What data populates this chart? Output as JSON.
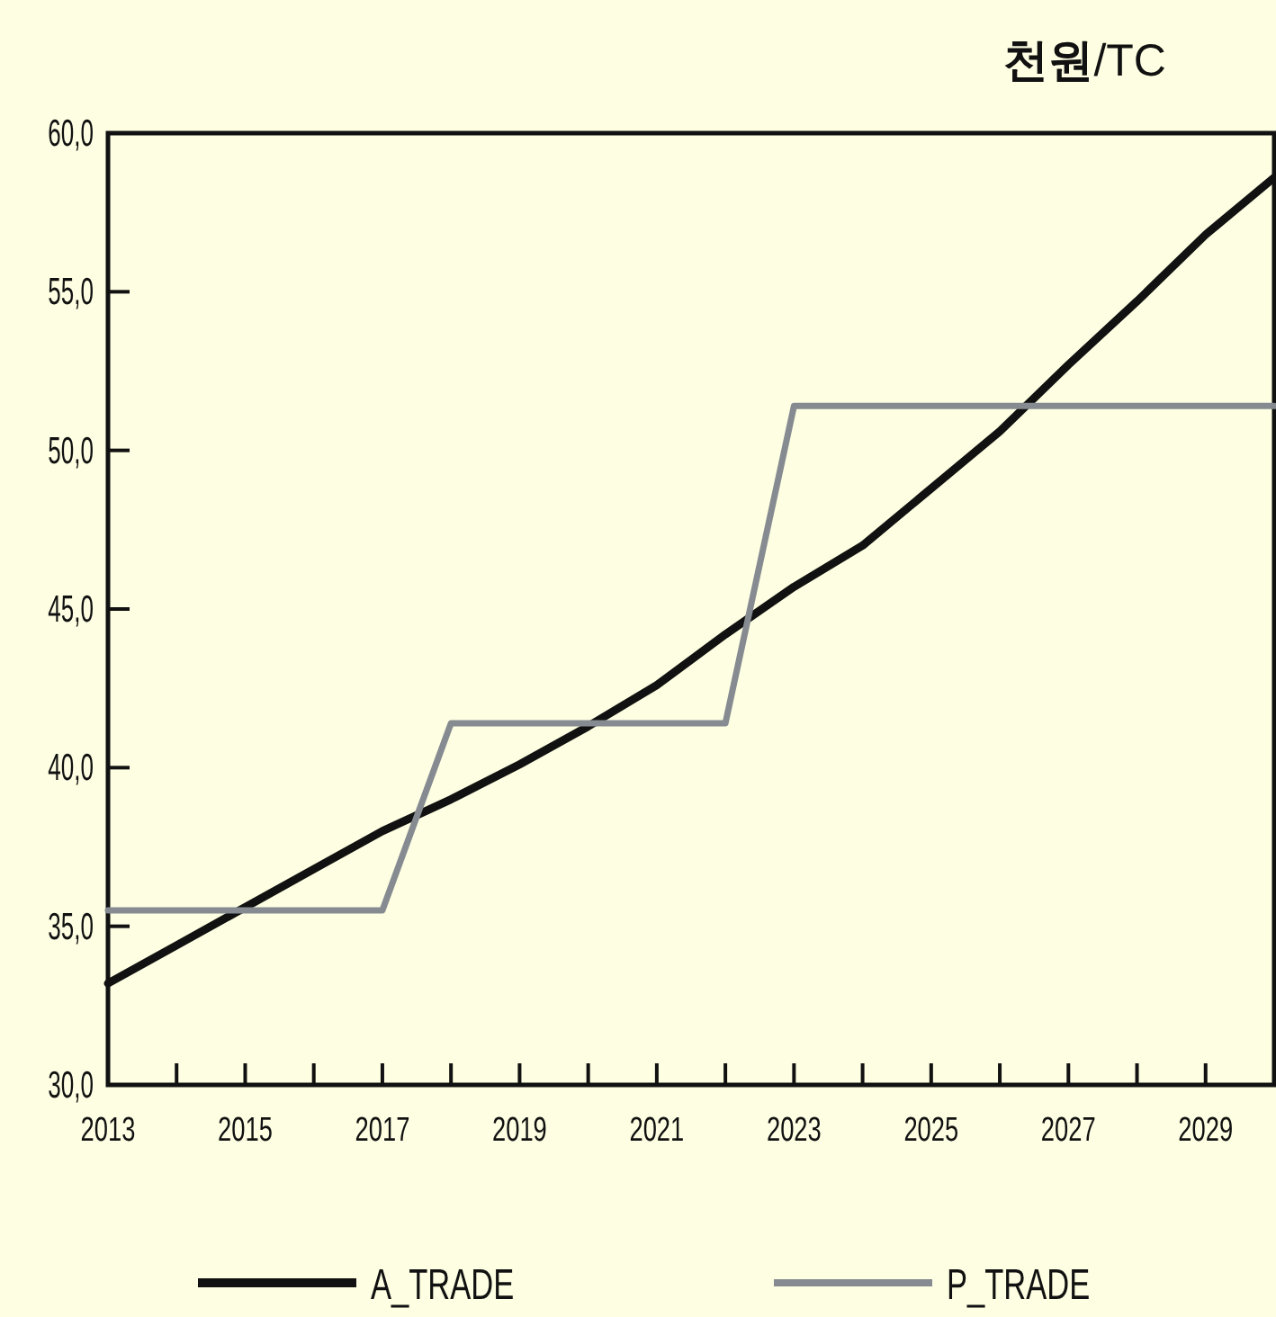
{
  "chart_data": {
    "type": "line",
    "ylabel": "**천원**/TC",
    "xlim": [
      2013,
      2030
    ],
    "ylim": [
      30,
      60
    ],
    "xticks": [
      2013,
      {
        "value": 2014,
        "label": null
      },
      2015,
      {
        "value": 2016,
        "label": null
      },
      2017,
      {
        "value": 2018,
        "label": null
      },
      2019,
      {
        "value": 2020,
        "label": null
      },
      2021,
      {
        "value": 2022,
        "label": null
      },
      2023,
      {
        "value": 2024,
        "label": null
      },
      2025,
      {
        "value": 2026,
        "label": null
      },
      2027,
      {
        "value": 2028,
        "label": null
      },
      2029
    ],
    "yticks": [
      {
        "value": 30,
        "label": "30,0"
      },
      {
        "value": 35,
        "label": "35,0"
      },
      {
        "value": 40,
        "label": "40,0"
      },
      {
        "value": 45,
        "label": "45,0"
      },
      {
        "value": 50,
        "label": "50,0"
      },
      {
        "value": 55,
        "label": "55,0"
      },
      {
        "value": 60,
        "label": "60,0"
      }
    ],
    "x": [
      2013,
      2014,
      2015,
      2016,
      2017,
      2018,
      2019,
      2020,
      2021,
      2022,
      2023,
      2024,
      2025,
      2026,
      2027,
      2028,
      2029,
      2030
    ],
    "legend": "bottom",
    "series": [
      {
        "name": "A_TRADE",
        "color": "#111111",
        "values": [
          33.2,
          34.4,
          35.6,
          36.8,
          38.0,
          39.0,
          40.1,
          41.3,
          42.6,
          44.2,
          45.7,
          47.0,
          48.8,
          50.6,
          52.7,
          54.7,
          56.8,
          58.6
        ]
      },
      {
        "name": "P_TRADE",
        "color": "#858b90",
        "values": [
          35.5,
          35.5,
          35.5,
          35.5,
          35.5,
          41.4,
          41.4,
          41.4,
          41.4,
          41.4,
          51.4,
          51.4,
          51.4,
          51.4,
          51.4,
          51.4,
          51.4,
          51.4
        ]
      }
    ]
  }
}
